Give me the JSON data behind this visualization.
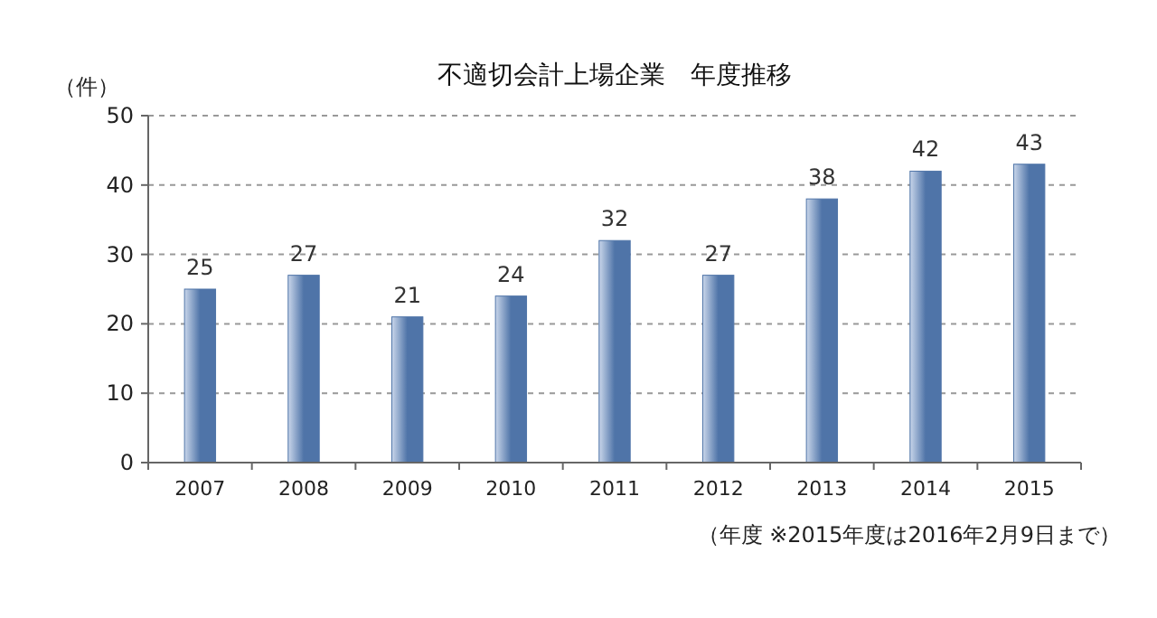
{
  "chart_data": {
    "type": "bar",
    "title": "不適切会計上場企業　年度推移",
    "ylabel": "（件）",
    "categories": [
      "2007",
      "2008",
      "2009",
      "2010",
      "2011",
      "2012",
      "2013",
      "2014",
      "2015"
    ],
    "values": [
      25,
      27,
      21,
      24,
      32,
      27,
      38,
      42,
      43
    ],
    "color": "#4f74a8",
    "ylim": [
      0,
      50
    ],
    "yticks": [
      0,
      10,
      20,
      30,
      40,
      50
    ],
    "grid": "y",
    "data_labels": true,
    "annotations": [
      "（年度 ※2015年度は2016年2月9日まで）"
    ]
  }
}
